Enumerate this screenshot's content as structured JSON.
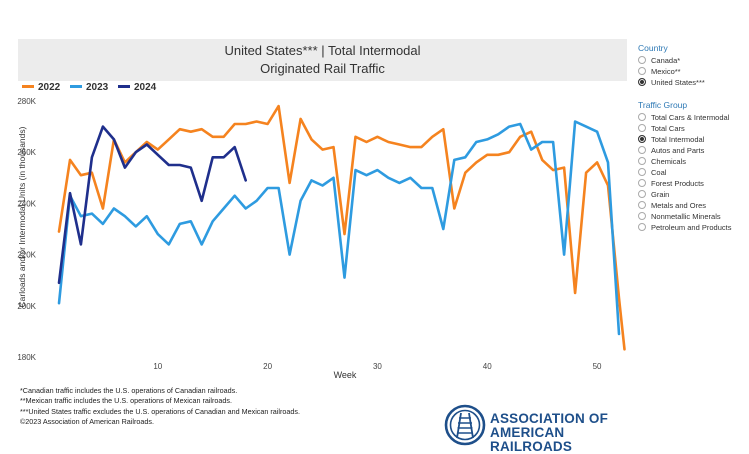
{
  "title": {
    "line1": "United States*** | Total Intermodal",
    "line2": "Originated Rail Traffic"
  },
  "colors": {
    "s2022": "#f5831f",
    "s2023": "#2e9be0",
    "s2024": "#1f2f8c",
    "accent": "#2e79b5"
  },
  "chart_data": {
    "type": "line",
    "xlabel": "Week",
    "ylabel": "Carloads and/or Intermodal Units (in thousands)",
    "xlim": [
      0,
      53
    ],
    "ylim": [
      180,
      280
    ],
    "x_ticks": [
      10,
      20,
      30,
      40,
      50
    ],
    "y_ticks": [
      "180K",
      "200K",
      "220K",
      "240K",
      "260K",
      "280K"
    ],
    "y_tick_values": [
      180,
      200,
      220,
      240,
      260,
      280
    ],
    "legend_position": "top-left",
    "series": [
      {
        "name": "2022",
        "color": "#f5831f",
        "x": [
          1,
          2,
          3,
          4,
          5,
          6,
          7,
          8,
          9,
          10,
          11,
          12,
          13,
          14,
          15,
          16,
          17,
          18,
          19,
          20,
          21,
          22,
          23,
          24,
          25,
          26,
          27,
          28,
          29,
          30,
          31,
          32,
          33,
          34,
          35,
          36,
          37,
          38,
          39,
          40,
          41,
          42,
          43,
          44,
          45,
          46,
          47,
          48,
          49,
          50,
          51,
          52
        ],
        "values": [
          229,
          257,
          251,
          252,
          238,
          265,
          256,
          260,
          264,
          261,
          265,
          269,
          268,
          269,
          266,
          266,
          271,
          271,
          272,
          271,
          278,
          248,
          273,
          265,
          261,
          262,
          228,
          266,
          264,
          266,
          264,
          263,
          262,
          262,
          266,
          269,
          238,
          252,
          256,
          259,
          259,
          260,
          266,
          268,
          257,
          253,
          254,
          205,
          252,
          256,
          247,
          203
        ],
        "extra_point": [
          52.5,
          183
        ]
      },
      {
        "name": "2023",
        "color": "#2e9be0",
        "x": [
          1,
          2,
          3,
          4,
          5,
          6,
          7,
          8,
          9,
          10,
          11,
          12,
          13,
          14,
          15,
          16,
          17,
          18,
          19,
          20,
          21,
          22,
          23,
          24,
          25,
          26,
          27,
          28,
          29,
          30,
          31,
          32,
          33,
          34,
          35,
          36,
          37,
          38,
          39,
          40,
          41,
          42,
          43,
          44,
          45,
          46,
          47,
          48,
          49,
          50,
          51,
          52
        ],
        "values": [
          201,
          243,
          235,
          236,
          232,
          238,
          235,
          231,
          235,
          228,
          224,
          232,
          233,
          224,
          233,
          238,
          243,
          238,
          241,
          246,
          246,
          220,
          241,
          249,
          247,
          250,
          211,
          253,
          251,
          253,
          250,
          248,
          250,
          246,
          246,
          230,
          257,
          258,
          264,
          265,
          267,
          270,
          271,
          261,
          264,
          264,
          220,
          272,
          270,
          268,
          256,
          189
        ]
      },
      {
        "name": "2024",
        "color": "#1f2f8c",
        "x": [
          1,
          2,
          3,
          4,
          5,
          6,
          7,
          8,
          9,
          10,
          11,
          12,
          13,
          14,
          15,
          16,
          17,
          18
        ],
        "values": [
          209,
          244,
          224,
          258,
          270,
          265,
          254,
          260,
          263,
          259,
          255,
          255,
          254,
          241,
          258,
          258,
          262,
          249
        ]
      }
    ]
  },
  "notes": [
    "*Canadian traffic includes the U.S. operations of Canadian railroads.",
    "**Mexican traffic includes the U.S. operations of Mexican railroads.",
    "***United States traffic excludes the U.S. operations of Canadian and Mexican railroads.",
    "©2023 Association of American Railroads."
  ],
  "country": {
    "heading": "Country",
    "options": [
      "Canada*",
      "Mexico**",
      "United States***"
    ],
    "selected": 2
  },
  "traffic_group": {
    "heading": "Traffic Group",
    "options": [
      "Total Cars & Intermodal",
      "Total Cars",
      "Total Intermodal",
      "Autos and Parts",
      "Chemicals",
      "Coal",
      "Forest Products",
      "Grain",
      "Metals and Ores",
      "Nonmetallic Minerals",
      "Petroleum and Products"
    ],
    "selected": 2
  },
  "logo": {
    "line1": "ASSOCIATION OF",
    "line2": "AMERICAN RAILROADS"
  }
}
